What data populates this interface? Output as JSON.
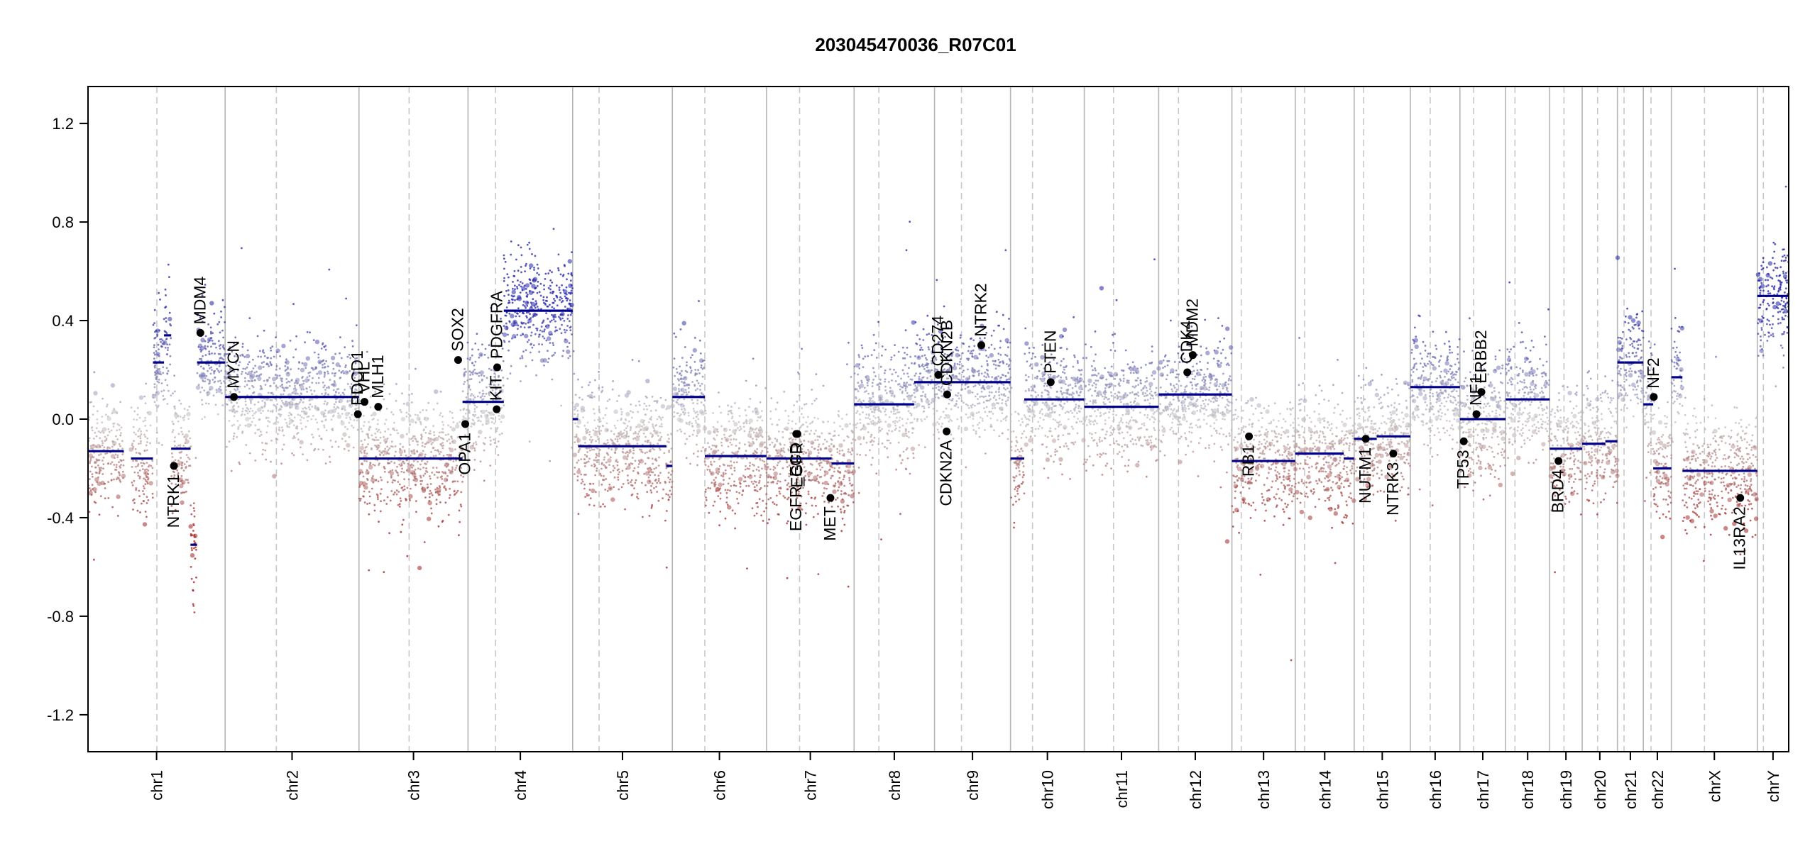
{
  "chart_data": {
    "type": "scatter",
    "title": "203045470036_R07C01",
    "xlabel": "",
    "ylabel": "",
    "ylim": [
      -1.35,
      1.35
    ],
    "yticks": [
      1.2,
      0.8,
      0.4,
      0.0,
      -0.4,
      -0.8,
      -1.2
    ],
    "ytick_labels": [
      "1.2",
      "0.8",
      "0.4",
      "0.0",
      "-0.4",
      "-0.8",
      "-1.2"
    ],
    "grid": false,
    "legend": "none",
    "colors": {
      "gain": "#1f1fa8",
      "neutral": "#c4c4c4",
      "loss": "#a01e1e",
      "segment": "#00008b",
      "gene_point": "#000000",
      "chrom_boundary": "#b5b5b5",
      "centromere": "#c8c8c8"
    },
    "chromosomes": [
      {
        "name": "chr1",
        "start": 0,
        "end": 249
      },
      {
        "name": "chr2",
        "start": 249,
        "end": 492
      },
      {
        "name": "chr3",
        "start": 492,
        "end": 690
      },
      {
        "name": "chr4",
        "start": 690,
        "end": 880
      },
      {
        "name": "chr5",
        "start": 880,
        "end": 1061
      },
      {
        "name": "chr6",
        "start": 1061,
        "end": 1232
      },
      {
        "name": "chr7",
        "start": 1232,
        "end": 1391
      },
      {
        "name": "chr8",
        "start": 1391,
        "end": 1537
      },
      {
        "name": "chr9",
        "start": 1537,
        "end": 1675
      },
      {
        "name": "chr10",
        "start": 1675,
        "end": 1809
      },
      {
        "name": "chr11",
        "start": 1809,
        "end": 1944
      },
      {
        "name": "chr12",
        "start": 1944,
        "end": 2077
      },
      {
        "name": "chr13",
        "start": 2077,
        "end": 2192
      },
      {
        "name": "chr14",
        "start": 2192,
        "end": 2299
      },
      {
        "name": "chr15",
        "start": 2299,
        "end": 2401
      },
      {
        "name": "chr16",
        "start": 2401,
        "end": 2491
      },
      {
        "name": "chr17",
        "start": 2491,
        "end": 2574
      },
      {
        "name": "chr18",
        "start": 2574,
        "end": 2654
      },
      {
        "name": "chr19",
        "start": 2654,
        "end": 2713
      },
      {
        "name": "chr20",
        "start": 2713,
        "end": 2777
      },
      {
        "name": "chr21",
        "start": 2777,
        "end": 2824
      },
      {
        "name": "chr22",
        "start": 2824,
        "end": 2875
      },
      {
        "name": "chrX",
        "start": 2875,
        "end": 3031
      },
      {
        "name": "chrY",
        "start": 3031,
        "end": 3088
      }
    ],
    "centromeres": [
      125,
      342,
      583,
      740,
      928,
      1120,
      1292,
      1436,
      1586,
      1715,
      1862,
      1980,
      2094,
      2209,
      2316,
      2437,
      2516,
      2591,
      2680,
      2741,
      2789,
      2838,
      2935,
      3042
    ],
    "segments": [
      {
        "chrom": "chr1",
        "x0": 0,
        "x1": 65,
        "y": -0.13
      },
      {
        "chrom": "chr1",
        "x0": 78,
        "x1": 118,
        "y": -0.16
      },
      {
        "chrom": "chr1",
        "x0": 120,
        "x1": 126,
        "y": 0.23
      },
      {
        "chrom": "chr1",
        "x0": 138,
        "x1": 151,
        "y": 0.34
      },
      {
        "chrom": "chr1",
        "x0": 118,
        "x1": 138,
        "y": 0.23
      },
      {
        "chrom": "chr1",
        "x0": 151,
        "x1": 186,
        "y": -0.12
      },
      {
        "chrom": "chr1",
        "x0": 186,
        "x1": 198,
        "y": -0.51
      },
      {
        "chrom": "chr1",
        "x0": 198,
        "x1": 249,
        "y": 0.23
      },
      {
        "chrom": "chr2",
        "x0": 249,
        "x1": 492,
        "y": 0.09
      },
      {
        "chrom": "chr3",
        "x0": 492,
        "x1": 680,
        "y": -0.16
      },
      {
        "chrom": "chr3",
        "x0": 680,
        "x1": 690,
        "y": 0.07
      },
      {
        "chrom": "chr4",
        "x0": 690,
        "x1": 755,
        "y": 0.07
      },
      {
        "chrom": "chr4",
        "x0": 755,
        "x1": 880,
        "y": 0.44
      },
      {
        "chrom": "chr5",
        "x0": 880,
        "x1": 890,
        "y": 0.0
      },
      {
        "chrom": "chr5",
        "x0": 890,
        "x1": 1050,
        "y": -0.11
      },
      {
        "chrom": "chr5",
        "x0": 1050,
        "x1": 1061,
        "y": -0.19
      },
      {
        "chrom": "chr6",
        "x0": 1061,
        "x1": 1120,
        "y": 0.09
      },
      {
        "chrom": "chr6",
        "x0": 1120,
        "x1": 1232,
        "y": -0.15
      },
      {
        "chrom": "chr7",
        "x0": 1232,
        "x1": 1350,
        "y": -0.16
      },
      {
        "chrom": "chr7",
        "x0": 1350,
        "x1": 1391,
        "y": -0.18
      },
      {
        "chrom": "chr8",
        "x0": 1391,
        "x1": 1500,
        "y": 0.06
      },
      {
        "chrom": "chr8",
        "x0": 1500,
        "x1": 1537,
        "y": 0.15
      },
      {
        "chrom": "chr9",
        "x0": 1537,
        "x1": 1675,
        "y": 0.15
      },
      {
        "chrom": "chr10",
        "x0": 1675,
        "x1": 1700,
        "y": -0.16
      },
      {
        "chrom": "chr10",
        "x0": 1700,
        "x1": 1809,
        "y": 0.08
      },
      {
        "chrom": "chr11",
        "x0": 1809,
        "x1": 1944,
        "y": 0.05
      },
      {
        "chrom": "chr12",
        "x0": 1944,
        "x1": 2077,
        "y": 0.1
      },
      {
        "chrom": "chr13",
        "x0": 2077,
        "x1": 2192,
        "y": -0.17
      },
      {
        "chrom": "chr14",
        "x0": 2192,
        "x1": 2280,
        "y": -0.14
      },
      {
        "chrom": "chr14",
        "x0": 2280,
        "x1": 2299,
        "y": -0.16
      },
      {
        "chrom": "chr15",
        "x0": 2299,
        "x1": 2340,
        "y": -0.08
      },
      {
        "chrom": "chr15",
        "x0": 2340,
        "x1": 2401,
        "y": -0.07
      },
      {
        "chrom": "chr16",
        "x0": 2401,
        "x1": 2491,
        "y": 0.13
      },
      {
        "chrom": "chr17",
        "x0": 2491,
        "x1": 2574,
        "y": 0.0
      },
      {
        "chrom": "chr18",
        "x0": 2574,
        "x1": 2654,
        "y": 0.08
      },
      {
        "chrom": "chr19",
        "x0": 2654,
        "x1": 2713,
        "y": -0.12
      },
      {
        "chrom": "chr20",
        "x0": 2713,
        "x1": 2755,
        "y": -0.1
      },
      {
        "chrom": "chr20",
        "x0": 2755,
        "x1": 2777,
        "y": -0.09
      },
      {
        "chrom": "chr21",
        "x0": 2777,
        "x1": 2790,
        "y": 0.23
      },
      {
        "chrom": "chr21",
        "x0": 2790,
        "x1": 2824,
        "y": 0.23
      },
      {
        "chrom": "chr22",
        "x0": 2824,
        "x1": 2842,
        "y": 0.06
      },
      {
        "chrom": "chr22",
        "x0": 2842,
        "x1": 2875,
        "y": -0.2
      },
      {
        "chrom": "chrX",
        "x0": 2875,
        "x1": 2895,
        "y": 0.17
      },
      {
        "chrom": "chrX",
        "x0": 2895,
        "x1": 3031,
        "y": -0.21
      },
      {
        "chrom": "chrY",
        "x0": 3031,
        "x1": 3088,
        "y": 0.5
      }
    ],
    "genes": [
      {
        "name": "NTRK1",
        "x": 156,
        "y": -0.19,
        "pos": "below"
      },
      {
        "name": "MDM4",
        "x": 204,
        "y": 0.35,
        "pos": "above"
      },
      {
        "name": "MYCN",
        "x": 265,
        "y": 0.09,
        "pos": "above"
      },
      {
        "name": "PDCD1",
        "x": 490,
        "y": 0.02,
        "pos": "above"
      },
      {
        "name": "VHL",
        "x": 502,
        "y": 0.07,
        "pos": "above"
      },
      {
        "name": "MLH1",
        "x": 527,
        "y": 0.05,
        "pos": "above"
      },
      {
        "name": "SOX2",
        "x": 672,
        "y": 0.24,
        "pos": "above"
      },
      {
        "name": "OPA1",
        "x": 685,
        "y": -0.02,
        "pos": "below"
      },
      {
        "name": "KIT",
        "x": 742,
        "y": 0.04,
        "pos": "above"
      },
      {
        "name": "PDGFRA",
        "x": 743,
        "y": 0.21,
        "pos": "above"
      },
      {
        "name": "EGFR_ECD",
        "x": 1286,
        "y": -0.06,
        "pos": "below"
      },
      {
        "name": "EGFR",
        "x": 1288,
        "y": -0.06,
        "pos": "below"
      },
      {
        "name": "MET",
        "x": 1348,
        "y": -0.32,
        "pos": "below"
      },
      {
        "name": "CD274",
        "x": 1544,
        "y": 0.18,
        "pos": "above"
      },
      {
        "name": "CDKN2B",
        "x": 1560,
        "y": 0.1,
        "pos": "above"
      },
      {
        "name": "CDKN2A",
        "x": 1559,
        "y": -0.05,
        "pos": "below"
      },
      {
        "name": "NTRK2",
        "x": 1622,
        "y": 0.3,
        "pos": "above"
      },
      {
        "name": "PTEN",
        "x": 1748,
        "y": 0.15,
        "pos": "above"
      },
      {
        "name": "CDK4",
        "x": 1996,
        "y": 0.19,
        "pos": "above"
      },
      {
        "name": "MDM2",
        "x": 2006,
        "y": 0.26,
        "pos": "above"
      },
      {
        "name": "RB1",
        "x": 2108,
        "y": -0.07,
        "pos": "below"
      },
      {
        "name": "NUTM1",
        "x": 2320,
        "y": -0.08,
        "pos": "below"
      },
      {
        "name": "NTRK3",
        "x": 2370,
        "y": -0.14,
        "pos": "below"
      },
      {
        "name": "TP53",
        "x": 2498,
        "y": -0.09,
        "pos": "below"
      },
      {
        "name": "NF1",
        "x": 2521,
        "y": 0.02,
        "pos": "above"
      },
      {
        "name": "ERBB2",
        "x": 2530,
        "y": 0.11,
        "pos": "above"
      },
      {
        "name": "BRD4",
        "x": 2670,
        "y": -0.17,
        "pos": "below"
      },
      {
        "name": "NF2",
        "x": 2843,
        "y": 0.09,
        "pos": "above"
      },
      {
        "name": "IL13RA2",
        "x": 3000,
        "y": -0.32,
        "pos": "below"
      }
    ]
  }
}
